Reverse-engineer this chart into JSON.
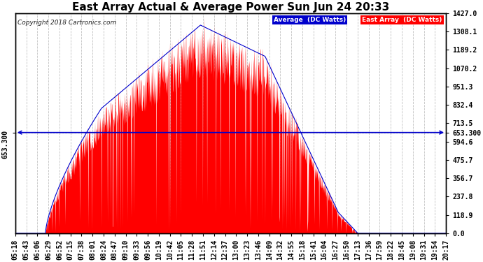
{
  "title": "East Array Actual & Average Power Sun Jun 24 20:33",
  "copyright": "Copyright 2018 Cartronics.com",
  "y_right_ticks": [
    0.0,
    118.9,
    237.8,
    356.7,
    475.7,
    594.6,
    713.5,
    832.4,
    951.3,
    1070.2,
    1189.2,
    1308.1,
    1427.0
  ],
  "y_left_label": "653.300",
  "hline_y": 653.3,
  "ymax": 1427.0,
  "ymin": 0.0,
  "x_labels": [
    "05:18",
    "05:43",
    "06:06",
    "06:29",
    "06:52",
    "07:15",
    "07:38",
    "08:01",
    "08:24",
    "08:47",
    "09:10",
    "09:33",
    "09:56",
    "10:19",
    "10:42",
    "11:05",
    "11:28",
    "11:51",
    "12:14",
    "12:37",
    "13:00",
    "13:23",
    "13:46",
    "14:09",
    "14:32",
    "14:55",
    "15:18",
    "15:41",
    "16:04",
    "16:27",
    "16:50",
    "17:13",
    "17:36",
    "17:59",
    "18:22",
    "18:45",
    "19:08",
    "19:31",
    "19:54",
    "20:17"
  ],
  "background_color": "#ffffff",
  "plot_bg_color": "#ffffff",
  "red_color": "#ff0000",
  "blue_color": "#0000cc",
  "grid_color": "#bbbbbb",
  "hline_color": "#0000cc",
  "title_fontsize": 11,
  "tick_fontsize": 7,
  "legend_blue_label": "Average  (DC Watts)",
  "legend_red_label": "East Array  (DC Watts)"
}
